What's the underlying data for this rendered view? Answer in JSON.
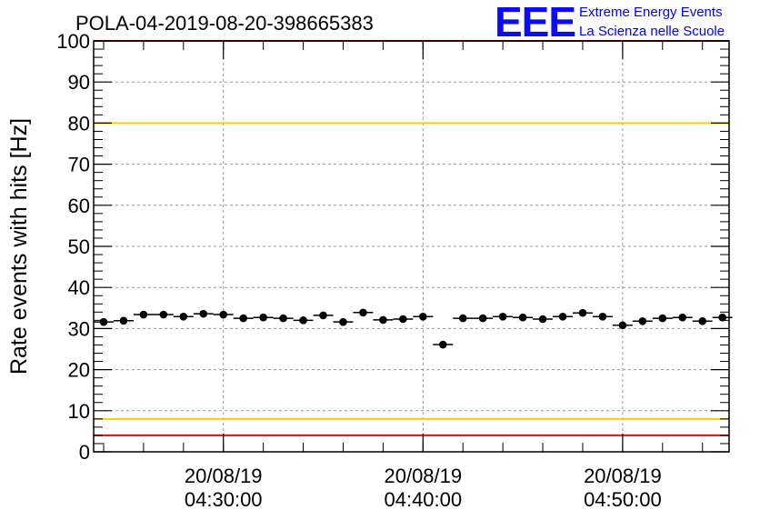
{
  "chart_data": {
    "type": "scatter",
    "title": "POLA-04-2019-08-20-398665383",
    "ylabel": "Rate events with hits [Hz]",
    "xlabel": "",
    "ylim": [
      0,
      100
    ],
    "yticks": [
      0,
      10,
      20,
      30,
      40,
      50,
      60,
      70,
      80,
      90,
      100
    ],
    "xlim": [
      "20/08/19 04:23:30",
      "20/08/19 04:55:20"
    ],
    "xticks": [
      {
        "time": "04:30:00",
        "date": "20/08/19",
        "label_date": "20/08/19",
        "label_time": "04:30:00"
      },
      {
        "time": "04:40:00",
        "date": "20/08/19",
        "label_date": "20/08/19",
        "label_time": "04:40:00"
      },
      {
        "time": "04:50:00",
        "date": "20/08/19",
        "label_date": "20/08/19",
        "label_time": "04:50:00"
      }
    ],
    "grid": true,
    "marker": "filled-circle-with-horizontal-error-bar",
    "point_half_width_minutes": 0.5,
    "points": [
      {
        "time": "04:24:00",
        "rate": 31.6
      },
      {
        "time": "04:25:00",
        "rate": 31.9
      },
      {
        "time": "04:26:00",
        "rate": 33.4
      },
      {
        "time": "04:27:00",
        "rate": 33.4
      },
      {
        "time": "04:28:00",
        "rate": 32.9
      },
      {
        "time": "04:29:00",
        "rate": 33.6
      },
      {
        "time": "04:30:00",
        "rate": 33.4
      },
      {
        "time": "04:31:00",
        "rate": 32.5
      },
      {
        "time": "04:32:00",
        "rate": 32.7
      },
      {
        "time": "04:33:00",
        "rate": 32.5
      },
      {
        "time": "04:34:00",
        "rate": 32.0
      },
      {
        "time": "04:35:00",
        "rate": 33.2
      },
      {
        "time": "04:36:00",
        "rate": 31.6
      },
      {
        "time": "04:37:00",
        "rate": 33.9
      },
      {
        "time": "04:38:00",
        "rate": 32.1
      },
      {
        "time": "04:39:00",
        "rate": 32.3
      },
      {
        "time": "04:40:00",
        "rate": 32.9
      },
      {
        "time": "04:41:00",
        "rate": 26.1
      },
      {
        "time": "04:42:00",
        "rate": 32.5
      },
      {
        "time": "04:43:00",
        "rate": 32.5
      },
      {
        "time": "04:44:00",
        "rate": 32.9
      },
      {
        "time": "04:45:00",
        "rate": 32.7
      },
      {
        "time": "04:46:00",
        "rate": 32.3
      },
      {
        "time": "04:47:00",
        "rate": 32.9
      },
      {
        "time": "04:48:00",
        "rate": 33.8
      },
      {
        "time": "04:49:00",
        "rate": 32.9
      },
      {
        "time": "04:50:00",
        "rate": 30.8
      },
      {
        "time": "04:51:00",
        "rate": 31.8
      },
      {
        "time": "04:52:00",
        "rate": 32.5
      },
      {
        "time": "04:53:00",
        "rate": 32.7
      },
      {
        "time": "04:54:00",
        "rate": 31.8
      },
      {
        "time": "04:55:00",
        "rate": 32.7
      }
    ],
    "reference_lines": [
      {
        "y": 100,
        "color": "#ff0000"
      },
      {
        "y": 80,
        "color": "#ffcc00"
      },
      {
        "y": 8,
        "color": "#ffcc00"
      },
      {
        "y": 4,
        "color": "#ff0000"
      }
    ]
  },
  "logo": {
    "mark": "EEE",
    "line1": "Extreme Energy Events",
    "line2": "La Scienza nelle Scuole",
    "color": "#0000ff"
  }
}
